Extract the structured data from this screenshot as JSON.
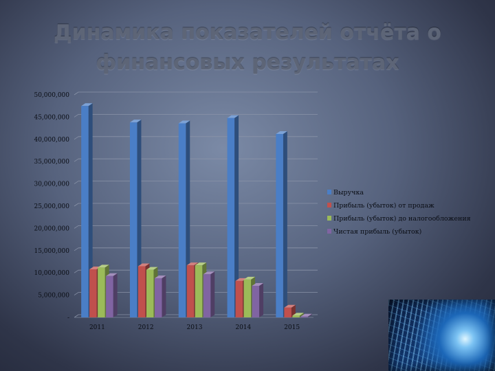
{
  "slide": {
    "title": "Динамика показателей отчёта о финансовых результатах"
  },
  "chart_data": {
    "type": "bar",
    "categories": [
      "2011",
      "2012",
      "2013",
      "2014",
      "2015"
    ],
    "series": [
      {
        "name": "Выручка",
        "color": "#4a7ec6",
        "values": [
          47500000,
          43800000,
          43600000,
          44800000,
          41200000
        ]
      },
      {
        "name": "Прибыль (убыток) от продаж",
        "color": "#c0504d",
        "values": [
          10800000,
          11500000,
          11700000,
          8200000,
          2200000
        ]
      },
      {
        "name": "Прибыль (убыток) до налогообложения",
        "color": "#9bbb59",
        "values": [
          11200000,
          10700000,
          11700000,
          8500000,
          400000
        ]
      },
      {
        "name": "Чистая прибыль (убыток)",
        "color": "#8064a2",
        "values": [
          9300000,
          8800000,
          9700000,
          7100000,
          200000
        ]
      }
    ],
    "y_ticks": [
      "-",
      "5,000,000",
      "10,000,000",
      "15,000,000",
      "20,000,000",
      "25,000,000",
      "30,000,000",
      "35,000,000",
      "40,000,000",
      "45,000,000",
      "50,000,000"
    ],
    "ylim": [
      0,
      50000000
    ],
    "grid": true,
    "legend": "right",
    "style": "3d-clustered-column"
  },
  "decor": {
    "photo_icon": "turbine-photo"
  }
}
